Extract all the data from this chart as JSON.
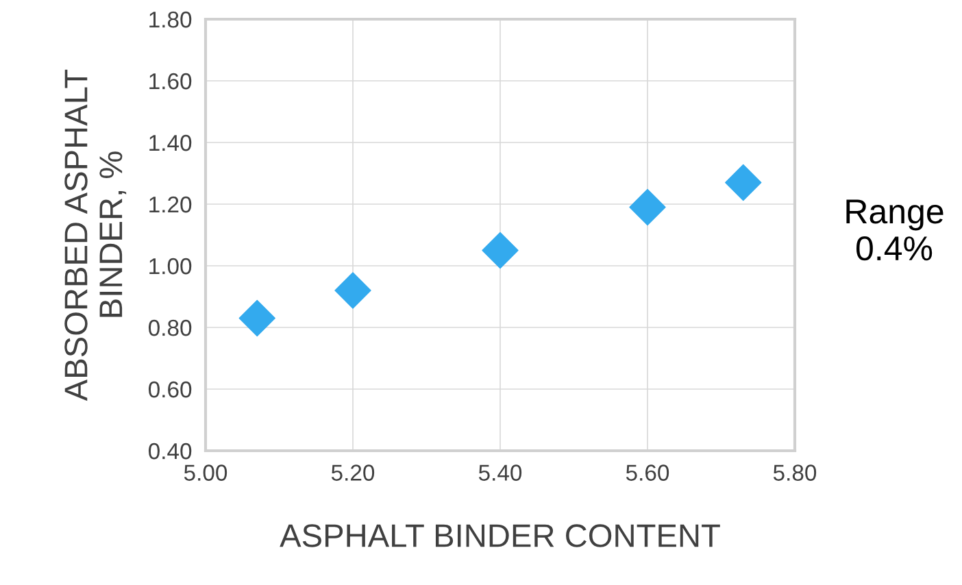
{
  "chart_data": {
    "type": "scatter",
    "xlabel": "ASPHALT BINDER CONTENT",
    "ylabel": "ABSORBED ASPHALT\nBINDER, %",
    "x": [
      5.07,
      5.2,
      5.4,
      5.6,
      5.73
    ],
    "series": [
      {
        "color": "#33aaee",
        "values": [
          0.83,
          0.92,
          1.05,
          1.19,
          1.27
        ]
      }
    ],
    "xlim": [
      5.0,
      5.8
    ],
    "xticks": [
      {
        "value": 5.0,
        "label": "5.00"
      },
      {
        "value": 5.2,
        "label": "5.20"
      },
      {
        "value": 5.4,
        "label": "5.40"
      },
      {
        "value": 5.6,
        "label": "5.60"
      },
      {
        "value": 5.8,
        "label": "5.80"
      }
    ],
    "ylim": [
      0.4,
      1.8
    ],
    "yticks": [
      {
        "value": 0.4,
        "label": "0.40"
      },
      {
        "value": 0.6,
        "label": "0.60"
      },
      {
        "value": 0.8,
        "label": "0.80"
      },
      {
        "value": 1.0,
        "label": "1.00"
      },
      {
        "value": 1.2,
        "label": "1.20"
      },
      {
        "value": 1.4,
        "label": "1.40"
      },
      {
        "value": 1.6,
        "label": "1.60"
      },
      {
        "value": 1.8,
        "label": "1.80"
      }
    ],
    "grid": true,
    "marker": "diamond",
    "legend": false,
    "annotations": [
      "Range\n0.4%"
    ]
  }
}
